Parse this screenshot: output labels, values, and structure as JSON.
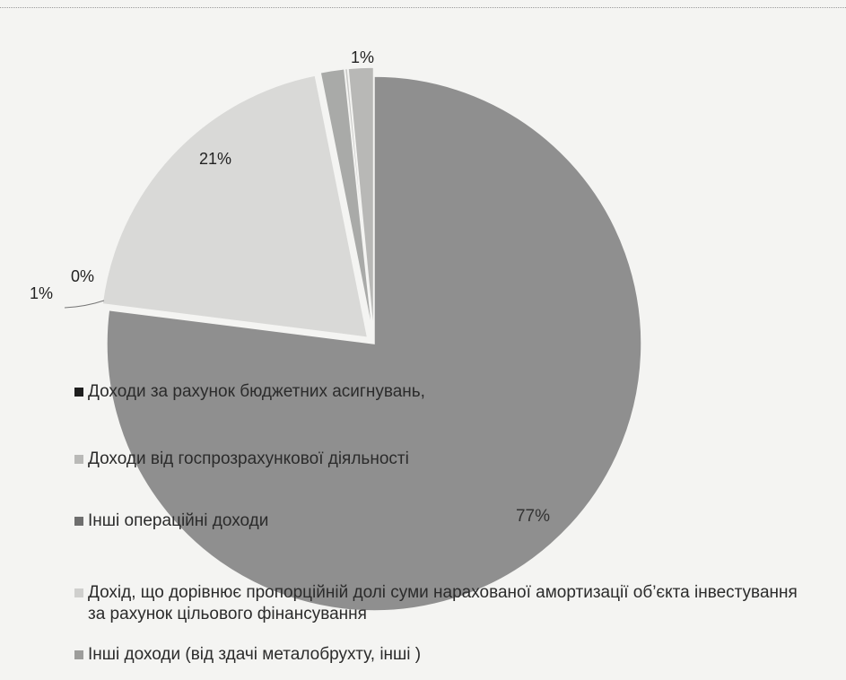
{
  "chart_data": {
    "type": "pie",
    "title": "",
    "slices": [
      {
        "label": "Доходи за рахунок бюджетних асигнувань,",
        "value": 77,
        "display": "77%",
        "color": "#8f8f8f"
      },
      {
        "label": "Доходи від госпрозрахункової діяльності",
        "value": 21,
        "display": "21%",
        "color": "#d9d9d7"
      },
      {
        "label": "Інші операційні доходи",
        "value": 1,
        "display": "1%",
        "color": "#a9aaa8"
      },
      {
        "label": "Дохід, що дорівнює пропорційній долі суми нарахованої амортизації об’єкта інвестування за рахунок цільового фінансування",
        "value": 0,
        "display": "0%",
        "color": "#c9c9c7"
      },
      {
        "label": "Інші доходи (від здачі металобрухту, інші )",
        "value": 1,
        "display": "1%",
        "color": "#b8b8b6"
      }
    ],
    "legend_position": "overlay-left"
  },
  "legend": {
    "items": [
      {
        "text": "Доходи за рахунок бюджетних асигнувань,",
        "color": "#1f1f1f"
      },
      {
        "text": "Доходи від госпрозрахункової діяльності",
        "color": "#b9b9b7"
      },
      {
        "text": "Інші операційні доходи",
        "color": "#6e6e6e"
      },
      {
        "text": "Дохід, що дорівнює пропорційній долі суми нарахованої амортизації об’єкта інвестування за рахунок цільового фінансування",
        "color": "#cfcfcd"
      },
      {
        "text": "Інші доходи (від здачі металобрухту, інші )",
        "color": "#9d9d9b"
      }
    ]
  }
}
